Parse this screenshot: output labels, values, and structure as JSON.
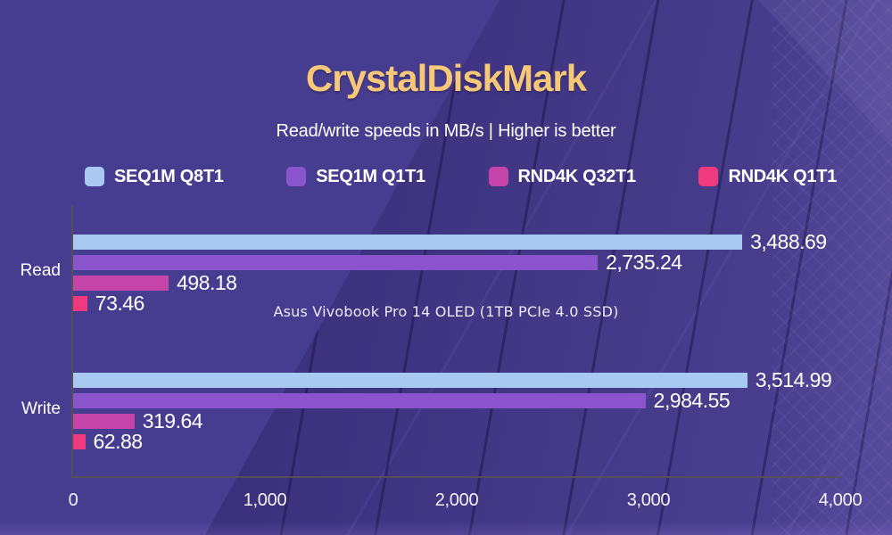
{
  "header": {
    "title": "CrystalDiskMark",
    "subtitle": "Read/write speeds in MB/s | Higher is better"
  },
  "annotation": "Asus Vivobook Pro 14 OLED (1TB PCIe 4.0 SSD)",
  "colors": {
    "background": "#473d90",
    "title_gold": "#f6c878",
    "text": "#ffffff",
    "axis_line": "#53505a"
  },
  "chart_data": {
    "type": "bar",
    "orientation": "horizontal",
    "title": "CrystalDiskMark",
    "subtitle": "Read/write speeds in MB/s | Higher is better",
    "categories": [
      "Read",
      "Write"
    ],
    "series": [
      {
        "name": "SEQ1M Q8T1",
        "color": "#a9c9f3",
        "values": [
          3488.69,
          3514.99
        ]
      },
      {
        "name": "SEQ1M Q1T1",
        "color": "#8a54cc",
        "values": [
          2735.24,
          2984.55
        ]
      },
      {
        "name": "RND4K Q32T1",
        "color": "#c544a9",
        "values": [
          498.18,
          319.64
        ]
      },
      {
        "name": "RND4K Q1T1",
        "color": "#f1397f",
        "values": [
          73.46,
          62.88
        ]
      }
    ],
    "value_labels": [
      [
        "3,488.69",
        "2,735.24",
        "498.18",
        "73.46"
      ],
      [
        "3,514.99",
        "2,984.55",
        "319.64",
        "62.88"
      ]
    ],
    "xlim": [
      0,
      4000
    ],
    "xticks": [
      "0",
      "1,000",
      "2,000",
      "3,000",
      "4,000"
    ],
    "legend_position": "top",
    "grid": false
  }
}
